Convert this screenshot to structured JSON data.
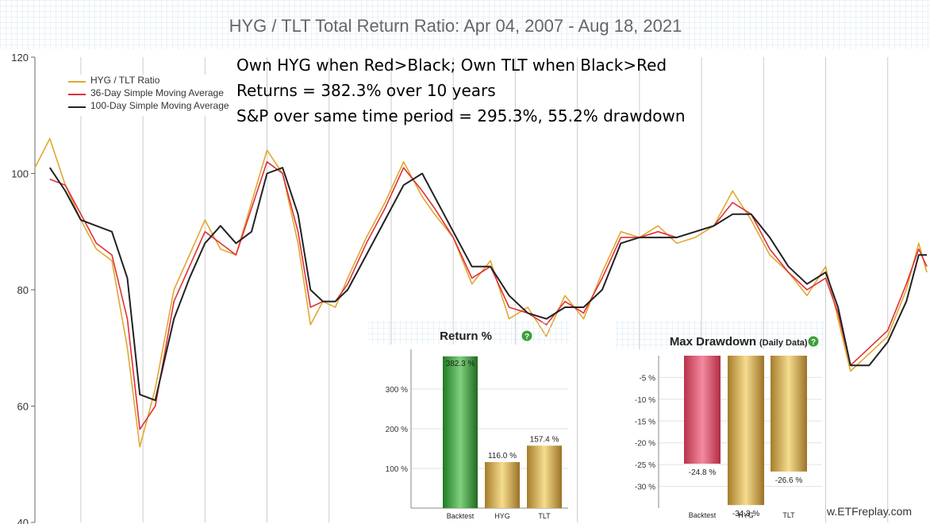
{
  "title": "HYG / TLT Total Return Ratio: Apr 04, 2007 - Aug 18, 2021",
  "notes": [
    "Own HYG when Red>Black; Own TLT when Black>Red",
    "Returns = 382.3% over 10 years",
    "S&P over same time period = 295.3%, 55.2% drawdown"
  ],
  "watermark": "w.ETFreplay.com",
  "colors": {
    "ratio": "#e0a82e",
    "ma36": "#e0303a",
    "ma100": "#222222",
    "grid": "#cccccc",
    "panel_grid_bg": "#eef6fb"
  },
  "chart_data": [
    {
      "type": "line",
      "title": "HYG / TLT Total Return Ratio: Apr 04, 2007 - Aug 18, 2021",
      "ylim": [
        40,
        120
      ],
      "yticks": [
        40,
        60,
        80,
        100,
        120
      ],
      "grid": true,
      "legend_position": "top-left",
      "x": [
        2007.26,
        2007.5,
        2007.75,
        2008.0,
        2008.25,
        2008.5,
        2008.75,
        2008.95,
        2009.2,
        2009.5,
        2009.75,
        2010.0,
        2010.25,
        2010.5,
        2010.75,
        2011.0,
        2011.25,
        2011.5,
        2011.7,
        2011.9,
        2012.1,
        2012.3,
        2012.6,
        2012.9,
        2013.2,
        2013.5,
        2013.7,
        2014.0,
        2014.3,
        2014.6,
        2014.9,
        2015.2,
        2015.5,
        2015.8,
        2016.1,
        2016.4,
        2016.7,
        2017.0,
        2017.3,
        2017.6,
        2017.9,
        2018.2,
        2018.5,
        2018.8,
        2019.1,
        2019.4,
        2019.7,
        2020.0,
        2020.2,
        2020.4,
        2020.7,
        2021.0,
        2021.3,
        2021.5,
        2021.63
      ],
      "series": [
        {
          "name": "HYG / TLT Ratio",
          "values": [
            101,
            106,
            98,
            92,
            87,
            85,
            70,
            53,
            63,
            80,
            86,
            92,
            87,
            86,
            95,
            104,
            100,
            88,
            74,
            78,
            77,
            82,
            89,
            95,
            102,
            96,
            93,
            89,
            81,
            85,
            75,
            77,
            72,
            79,
            75,
            83,
            90,
            89,
            91,
            88,
            89,
            91,
            97,
            92,
            86,
            83,
            79,
            84,
            75,
            66,
            69,
            72,
            80,
            88,
            83
          ]
        },
        {
          "name": "36-Day Simple Moving Average",
          "values": [
            null,
            99,
            98,
            93,
            88,
            86,
            75,
            56,
            60,
            78,
            84,
            90,
            88,
            86,
            94,
            102,
            100,
            90,
            77,
            78,
            78,
            81,
            88,
            94,
            101,
            97,
            94,
            89,
            82,
            84,
            77,
            76,
            74,
            78,
            76,
            82,
            89,
            89,
            90,
            89,
            90,
            91,
            95,
            93,
            87,
            83,
            80,
            82,
            76,
            67,
            70,
            73,
            81,
            87,
            84
          ]
        },
        {
          "name": "100-Day Simple Moving Average",
          "values": [
            null,
            101,
            97,
            92,
            91,
            90,
            82,
            62,
            61,
            75,
            82,
            88,
            91,
            88,
            90,
            100,
            101,
            93,
            80,
            78,
            78,
            80,
            86,
            92,
            98,
            100,
            96,
            90,
            84,
            84,
            79,
            76,
            75,
            77,
            77,
            80,
            88,
            89,
            89,
            89,
            90,
            91,
            93,
            93,
            89,
            84,
            81,
            83,
            77,
            67,
            67,
            71,
            78,
            86,
            86
          ]
        }
      ]
    },
    {
      "type": "bar",
      "title": "Return %",
      "categories": [
        "Backtest",
        "HYG",
        "TLT"
      ],
      "values": [
        382.3,
        116.0,
        157.4
      ],
      "data_labels": [
        "382.3 %",
        "116.0 %",
        "157.4 %"
      ],
      "yticks": [
        "100 %",
        "200 %",
        "300 %"
      ],
      "ylim": [
        0,
        400
      ]
    },
    {
      "type": "bar",
      "title": "Max Drawdown",
      "title_suffix": "(Daily Data)",
      "categories": [
        "Backtest",
        "HYG",
        "TLT"
      ],
      "values": [
        -24.8,
        -34.3,
        -26.6
      ],
      "data_labels": [
        "-24.8 %",
        "-34.3 %",
        "-26.6 %"
      ],
      "yticks": [
        "-5 %",
        "-10 %",
        "-15 %",
        "-20 %",
        "-25 %",
        "-30 %"
      ],
      "ylim": [
        -35,
        0
      ]
    }
  ]
}
